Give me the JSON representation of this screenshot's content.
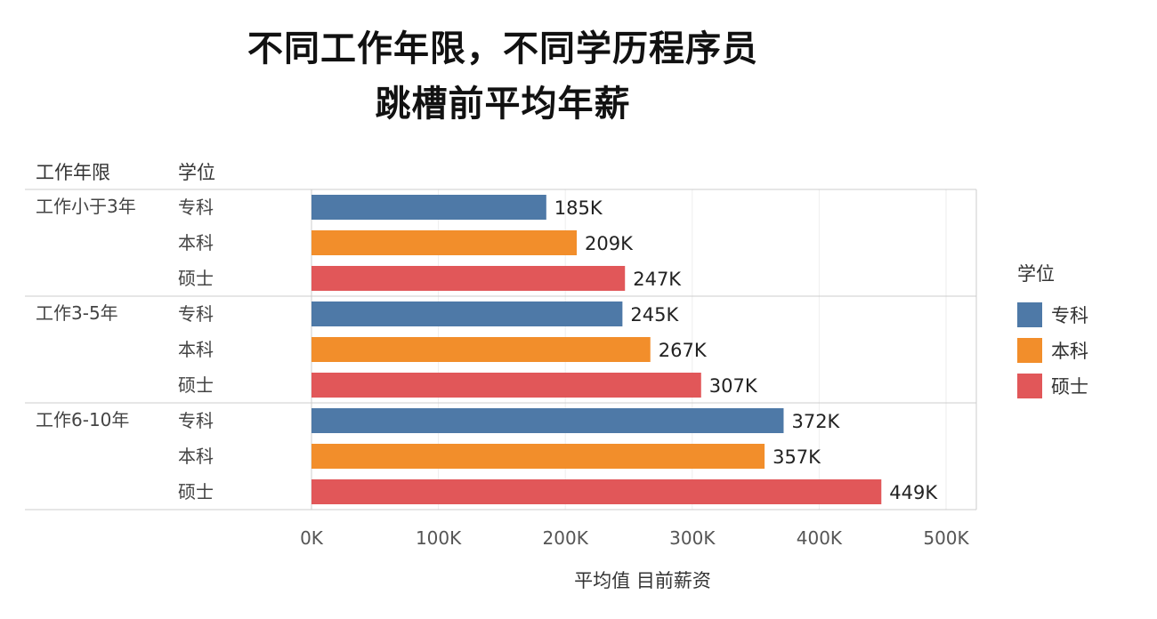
{
  "title": [
    "不同工作年限，不同学历程序员",
    "跳槽前平均年薪"
  ],
  "headers": {
    "years": "工作年限",
    "degree": "学位"
  },
  "legend": {
    "title": "学位",
    "items": [
      {
        "label": "专科",
        "color": "#4e79a7"
      },
      {
        "label": "本科",
        "color": "#f28e2b"
      },
      {
        "label": "硕士",
        "color": "#e15759"
      }
    ]
  },
  "chart_data": {
    "type": "bar",
    "orientation": "horizontal",
    "xlabel": "平均值 目前薪资",
    "xlim": [
      0,
      500
    ],
    "ticks": [
      "0K",
      "100K",
      "200K",
      "300K",
      "400K",
      "500K"
    ],
    "groups": [
      {
        "label": "工作小于3年",
        "bars": [
          {
            "category": "专科",
            "value": 185,
            "label": "185K"
          },
          {
            "category": "本科",
            "value": 209,
            "label": "209K"
          },
          {
            "category": "硕士",
            "value": 247,
            "label": "247K"
          }
        ]
      },
      {
        "label": "工作3-5年",
        "bars": [
          {
            "category": "专科",
            "value": 245,
            "label": "245K"
          },
          {
            "category": "本科",
            "value": 267,
            "label": "267K"
          },
          {
            "category": "硕士",
            "value": 307,
            "label": "307K"
          }
        ]
      },
      {
        "label": "工作6-10年",
        "bars": [
          {
            "category": "专科",
            "value": 372,
            "label": "372K"
          },
          {
            "category": "本科",
            "value": 357,
            "label": "357K"
          },
          {
            "category": "硕士",
            "value": 449,
            "label": "449K"
          }
        ]
      }
    ]
  }
}
